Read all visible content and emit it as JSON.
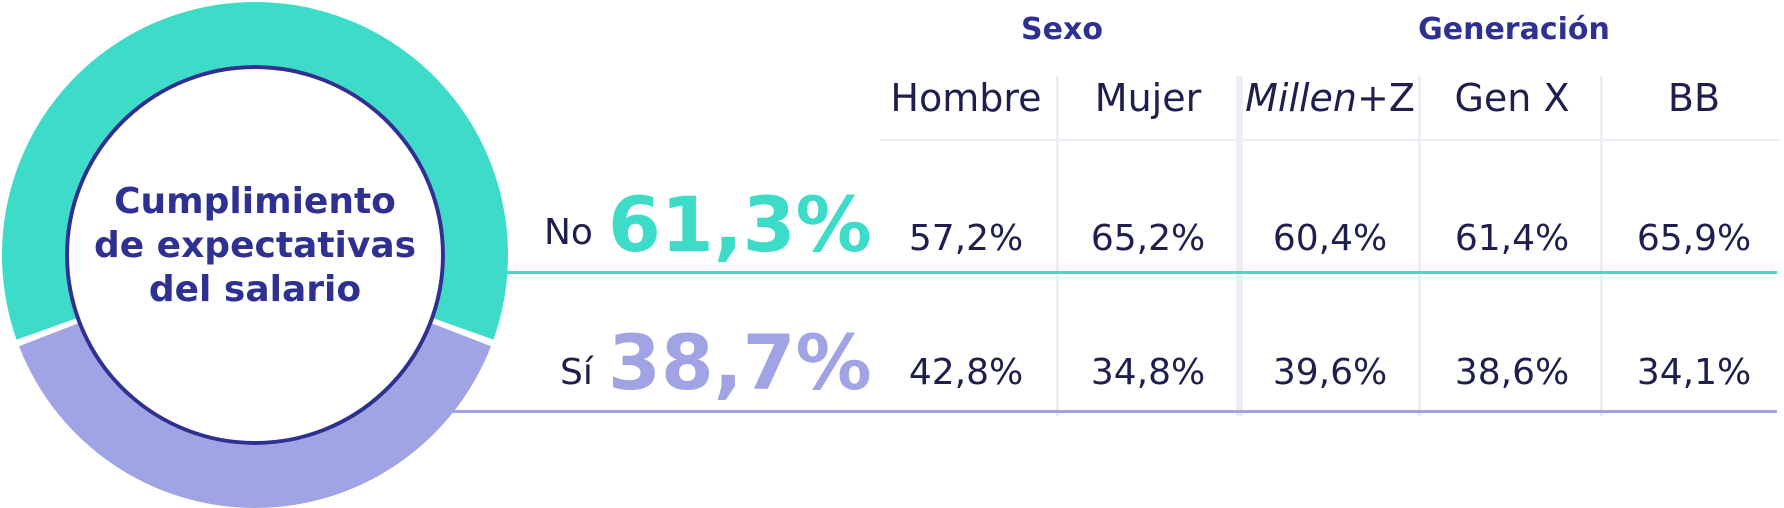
{
  "colors": {
    "no": "#3ddcc8",
    "si": "#a0a4e4",
    "navy": "#2e3191",
    "text": "#1f1f4d",
    "separator": "#eceef4"
  },
  "title_lines": [
    "Cumplimiento",
    "de expectativas",
    "del salario"
  ],
  "groups": [
    {
      "label": "Sexo"
    },
    {
      "label": "Generación"
    }
  ],
  "columns": [
    {
      "label": "Hombre"
    },
    {
      "label": "Mujer"
    },
    {
      "label_italic": "Millen",
      "label_rest": "+Z"
    },
    {
      "label": "Gen X"
    },
    {
      "label": "BB"
    }
  ],
  "chart_data": {
    "type": "table",
    "categories": [
      "Hombre",
      "Mujer",
      "Millen+Z",
      "Gen X",
      "BB"
    ],
    "series": [
      {
        "name": "No",
        "total": "61,3%",
        "total_value": 61.3,
        "values": [
          57.2,
          65.2,
          60.4,
          61.4,
          65.9
        ],
        "labels": [
          "57,2%",
          "65,2%",
          "60,4%",
          "61,4%",
          "65,9%"
        ]
      },
      {
        "name": "Sí",
        "total": "38,7%",
        "total_value": 38.7,
        "values": [
          42.8,
          34.8,
          39.6,
          38.6,
          34.1
        ],
        "labels": [
          "42,8%",
          "34,8%",
          "39,6%",
          "38,6%",
          "34,1%"
        ]
      }
    ]
  }
}
